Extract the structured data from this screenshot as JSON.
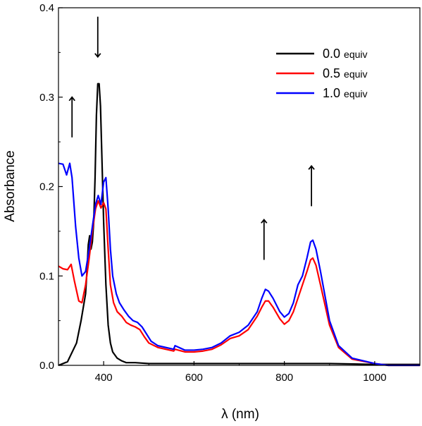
{
  "chart_data": {
    "type": "line",
    "xlabel": "λ (nm)",
    "ylabel": "Absorbance",
    "xlim": [
      300,
      1100
    ],
    "ylim": [
      0,
      0.4
    ],
    "x_ticks": [
      400,
      600,
      800,
      1000
    ],
    "y_ticks": [
      0.0,
      0.1,
      0.2,
      0.3,
      0.4
    ],
    "y_tick_labels": [
      "0.0",
      "0.1",
      "0.2",
      "0.3",
      "0.4"
    ],
    "grid": false,
    "legend_position": "top-right",
    "series": [
      {
        "name": "0.0 equiv",
        "color": "#000000",
        "x": [
          300,
          320,
          340,
          350,
          360,
          363,
          366,
          369,
          372,
          375,
          378,
          381,
          384,
          387,
          390,
          393,
          396,
          400,
          405,
          410,
          415,
          420,
          430,
          440,
          450,
          470,
          500,
          550,
          600,
          700,
          800,
          900,
          1000,
          1100
        ],
        "y": [
          0.0,
          0.004,
          0.025,
          0.05,
          0.08,
          0.105,
          0.135,
          0.145,
          0.13,
          0.138,
          0.16,
          0.21,
          0.28,
          0.315,
          0.315,
          0.29,
          0.235,
          0.16,
          0.09,
          0.045,
          0.025,
          0.015,
          0.008,
          0.005,
          0.003,
          0.003,
          0.002,
          0.002,
          0.002,
          0.002,
          0.002,
          0.002,
          0.001,
          0.001
        ]
      },
      {
        "name": "0.5 equiv",
        "color": "#ff0000",
        "x": [
          300,
          310,
          320,
          328,
          335,
          345,
          352,
          360,
          368,
          375,
          382,
          388,
          394,
          400,
          405,
          410,
          415,
          422,
          430,
          440,
          450,
          460,
          470,
          480,
          490,
          500,
          520,
          555,
          558,
          580,
          600,
          620,
          640,
          660,
          680,
          700,
          720,
          740,
          750,
          758,
          765,
          775,
          790,
          800,
          810,
          820,
          830,
          840,
          850,
          858,
          863,
          870,
          880,
          900,
          920,
          950,
          1000,
          1030,
          1100
        ],
        "y": [
          0.111,
          0.108,
          0.107,
          0.113,
          0.095,
          0.072,
          0.07,
          0.09,
          0.12,
          0.15,
          0.175,
          0.184,
          0.176,
          0.182,
          0.175,
          0.13,
          0.09,
          0.07,
          0.06,
          0.055,
          0.048,
          0.045,
          0.043,
          0.04,
          0.032,
          0.025,
          0.02,
          0.016,
          0.018,
          0.015,
          0.015,
          0.016,
          0.018,
          0.023,
          0.03,
          0.033,
          0.04,
          0.055,
          0.065,
          0.072,
          0.072,
          0.065,
          0.052,
          0.046,
          0.05,
          0.06,
          0.075,
          0.09,
          0.105,
          0.118,
          0.12,
          0.112,
          0.09,
          0.045,
          0.02,
          0.007,
          0.002,
          0.0,
          0.0
        ]
      },
      {
        "name": "1.0 equiv",
        "color": "#0000ff",
        "x": [
          300,
          310,
          318,
          325,
          330,
          338,
          345,
          352,
          360,
          368,
          375,
          382,
          388,
          394,
          400,
          405,
          410,
          415,
          420,
          428,
          435,
          445,
          455,
          465,
          475,
          485,
          495,
          505,
          520,
          555,
          558,
          580,
          600,
          620,
          640,
          660,
          680,
          700,
          720,
          740,
          750,
          758,
          765,
          775,
          790,
          800,
          810,
          820,
          830,
          840,
          850,
          858,
          863,
          870,
          880,
          900,
          920,
          950,
          1000,
          1030,
          1100
        ],
        "y": [
          0.226,
          0.225,
          0.213,
          0.226,
          0.21,
          0.155,
          0.12,
          0.1,
          0.105,
          0.13,
          0.155,
          0.18,
          0.19,
          0.18,
          0.205,
          0.21,
          0.175,
          0.13,
          0.1,
          0.08,
          0.07,
          0.062,
          0.055,
          0.05,
          0.048,
          0.043,
          0.035,
          0.027,
          0.022,
          0.018,
          0.022,
          0.017,
          0.017,
          0.018,
          0.02,
          0.025,
          0.033,
          0.037,
          0.045,
          0.06,
          0.075,
          0.085,
          0.083,
          0.075,
          0.06,
          0.054,
          0.058,
          0.07,
          0.09,
          0.1,
          0.12,
          0.138,
          0.14,
          0.13,
          0.105,
          0.05,
          0.022,
          0.008,
          0.002,
          0.0,
          0.0
        ]
      }
    ],
    "annotations": [
      {
        "type": "arrow",
        "direction": "up",
        "x": 330,
        "y_from": 0.255,
        "y_to": 0.3
      },
      {
        "type": "arrow",
        "direction": "down",
        "x": 387,
        "y_from": 0.39,
        "y_to": 0.345
      },
      {
        "type": "arrow",
        "direction": "up",
        "x": 755,
        "y_from": 0.118,
        "y_to": 0.163
      },
      {
        "type": "arrow",
        "direction": "up",
        "x": 860,
        "y_from": 0.178,
        "y_to": 0.223
      }
    ]
  }
}
